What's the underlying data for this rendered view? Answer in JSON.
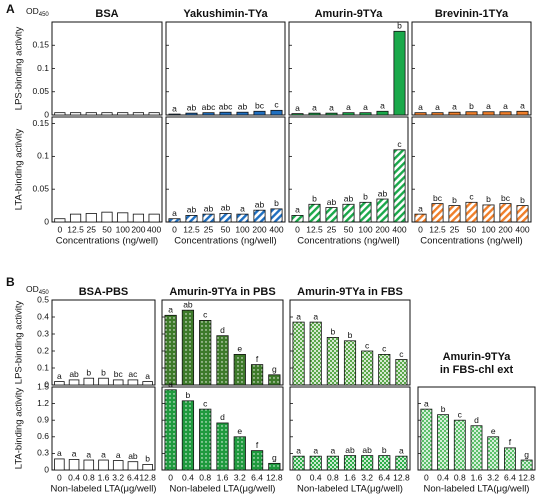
{
  "labels": {
    "a": "A",
    "b": "B"
  },
  "chart_data": [
    {
      "type": "bar",
      "title": "BSA",
      "title_color": "#111111",
      "ylabel": "LPS-binding activity",
      "od": "OD",
      "od_sub": "450",
      "color": "#ffffff",
      "pattern": "solid",
      "values": [
        0.005,
        0.005,
        0.005,
        0.005,
        0.005,
        0.005,
        0.005
      ],
      "ylim": [
        0,
        0.2
      ],
      "yticks": [
        0,
        0.05,
        0.1,
        0.15
      ]
    },
    {
      "type": "bar",
      "ylabel": "LTA-binding activity",
      "xlabel": "Concentrations (ng/well)",
      "color": "#ffffff",
      "pattern": "solid",
      "categories": [
        "0",
        "12.5",
        "25",
        "50",
        "100",
        "200",
        "400"
      ],
      "values": [
        0.005,
        0.012,
        0.013,
        0.015,
        0.014,
        0.012,
        0.012
      ],
      "ylim": [
        0,
        0.16
      ],
      "yticks": [
        0,
        0.05,
        0.1,
        0.15
      ]
    },
    {
      "type": "bar",
      "title": "Yakushimin-TYa",
      "title_color": "#1f6fc0",
      "color": "#1f6fc0",
      "pattern": "solid",
      "values": [
        0.002,
        0.004,
        0.005,
        0.006,
        0.006,
        0.008,
        0.01
      ],
      "annotations": [
        "a",
        "ab",
        "abc",
        "abc",
        "ab",
        "bc",
        "c"
      ],
      "ylim": [
        0,
        0.2
      ],
      "yticks": [
        0,
        0.05,
        0.1,
        0.15
      ]
    },
    {
      "type": "bar",
      "xlabel": "Concentrations (ng/well)",
      "color": "#1f6fc0",
      "pattern": "hatch",
      "categories": [
        "0",
        "12.5",
        "25",
        "50",
        "100",
        "200",
        "400"
      ],
      "values": [
        0.005,
        0.01,
        0.012,
        0.013,
        0.012,
        0.018,
        0.02
      ],
      "annotations": [
        "a",
        "ab",
        "ab",
        "ab",
        "a",
        "ab",
        "b"
      ],
      "ylim": [
        0,
        0.16
      ],
      "yticks": [
        0,
        0.05,
        0.1,
        0.15
      ]
    },
    {
      "type": "bar",
      "title": "Amurin-9TYa",
      "title_color": "#1aa84a",
      "color": "#1aa84a",
      "pattern": "solid",
      "values": [
        0.003,
        0.004,
        0.004,
        0.005,
        0.005,
        0.008,
        0.18
      ],
      "annotations": [
        "a",
        "a",
        "a",
        "a",
        "a",
        "a",
        "b"
      ],
      "ylim": [
        0,
        0.2
      ],
      "yticks": [
        0,
        0.05,
        0.1,
        0.15
      ]
    },
    {
      "type": "bar",
      "xlabel": "Concentrations (ng/well)",
      "color": "#1aa84a",
      "pattern": "hatch",
      "categories": [
        "0",
        "12.5",
        "25",
        "50",
        "100",
        "200",
        "400"
      ],
      "values": [
        0.01,
        0.027,
        0.022,
        0.027,
        0.03,
        0.035,
        0.11
      ],
      "annotations": [
        "a",
        "b",
        "ab",
        "ab",
        "b",
        "ab",
        "c"
      ],
      "ylim": [
        0,
        0.16
      ],
      "yticks": [
        0,
        0.05,
        0.1,
        0.15
      ]
    },
    {
      "type": "bar",
      "title": "Brevinin-1TYa",
      "title_color": "#f07f2a",
      "color": "#f07f2a",
      "pattern": "solid",
      "values": [
        0.005,
        0.005,
        0.006,
        0.007,
        0.007,
        0.007,
        0.008
      ],
      "annotations": [
        "a",
        "a",
        "a",
        "b",
        "a",
        "a",
        "a"
      ],
      "ylim": [
        0,
        0.2
      ],
      "yticks": [
        0,
        0.05,
        0.1,
        0.15
      ]
    },
    {
      "type": "bar",
      "xlabel": "Concentrations (ng/well)",
      "color": "#f07f2a",
      "pattern": "hatch",
      "categories": [
        "0",
        "12.5",
        "25",
        "50",
        "100",
        "200",
        "400"
      ],
      "values": [
        0.012,
        0.028,
        0.025,
        0.03,
        0.026,
        0.028,
        0.025
      ],
      "annotations": [
        "a",
        "bc",
        "b",
        "c",
        "b",
        "bc",
        "b"
      ],
      "ylim": [
        0,
        0.16
      ],
      "yticks": [
        0,
        0.05,
        0.1,
        0.15
      ]
    },
    {
      "type": "bar",
      "title": "BSA-PBS",
      "title_color": "#111111",
      "ylabel": "LPS-binding activity",
      "od": "OD",
      "od_sub": "450",
      "color": "#ffffff",
      "pattern": "solid",
      "values": [
        0.02,
        0.03,
        0.04,
        0.04,
        0.03,
        0.03,
        0.02
      ],
      "annotations": [
        "a",
        "ab",
        "b",
        "b",
        "bc",
        "ac",
        "a"
      ],
      "ylim": [
        0,
        0.5
      ],
      "yticks": [
        0,
        0.1,
        0.2,
        0.3,
        0.4,
        0.5
      ]
    },
    {
      "type": "bar",
      "ylabel": "LTA-binding activity",
      "xlabel": "Non-labeled LTA(μg/well)",
      "color": "#ffffff",
      "pattern": "solid",
      "categories": [
        "0",
        "0.4",
        "0.8",
        "1.6",
        "3.2",
        "6.4",
        "12.8"
      ],
      "values": [
        0.2,
        0.19,
        0.18,
        0.18,
        0.17,
        0.15,
        0.1
      ],
      "annotations": [
        "a",
        "a",
        "a",
        "a",
        "a",
        "ab",
        "b"
      ],
      "ylim": [
        0,
        1.5
      ],
      "yticks": [
        0,
        0.3,
        0.6,
        0.9,
        1.2,
        1.5
      ]
    },
    {
      "type": "bar",
      "title": "Amurin-9TYa in PBS",
      "title_color": "#1aa84a",
      "color": "#3d7a2a",
      "pattern": "dots",
      "values": [
        0.41,
        0.44,
        0.38,
        0.29,
        0.18,
        0.12,
        0.06
      ],
      "annotations": [
        "a",
        "ab",
        "c",
        "d",
        "e",
        "f",
        "g"
      ],
      "ylim": [
        0,
        0.5
      ],
      "yticks": [
        0,
        0.1,
        0.2,
        0.3,
        0.4,
        0.5
      ]
    },
    {
      "type": "bar",
      "xlabel": "Non-labeled LTA(μg/well)",
      "color": "#1f9a3e",
      "pattern": "dots",
      "categories": [
        "0",
        "0.4",
        "0.8",
        "1.6",
        "3.2",
        "6.4",
        "12.8"
      ],
      "values": [
        1.45,
        1.25,
        1.1,
        0.85,
        0.6,
        0.35,
        0.12
      ],
      "annotations": [
        "a",
        "b",
        "c",
        "d",
        "e",
        "f",
        "g"
      ],
      "ylim": [
        0,
        1.5
      ],
      "yticks": [
        0,
        0.3,
        0.6,
        0.9,
        1.2,
        1.5
      ]
    },
    {
      "type": "bar",
      "title": "Amurin-9TYa in FBS",
      "title_color": "#1aa84a",
      "color": "#5aa84a",
      "pattern": "checks",
      "values": [
        0.37,
        0.37,
        0.28,
        0.26,
        0.2,
        0.18,
        0.15
      ],
      "annotations": [
        "a",
        "a",
        "b",
        "b",
        "c",
        "c",
        "c"
      ],
      "ylim": [
        0,
        0.5
      ],
      "yticks": [
        0,
        0.1,
        0.2,
        0.3,
        0.4,
        0.5
      ]
    },
    {
      "type": "bar",
      "xlabel": "Non-labeled LTA(μg/well)",
      "color": "#2fae4a",
      "pattern": "checks",
      "categories": [
        "0",
        "0.4",
        "0.8",
        "1.6",
        "3.2",
        "6.4",
        "12.8"
      ],
      "values": [
        0.25,
        0.25,
        0.25,
        0.26,
        0.26,
        0.26,
        0.25
      ],
      "annotations": [
        "a",
        "a",
        "a",
        "ab",
        "ab",
        "b",
        "a"
      ],
      "ylim": [
        0,
        1.5
      ],
      "yticks": [
        0,
        0.3,
        0.6,
        0.9,
        1.2,
        1.5
      ]
    },
    {
      "type": "bar",
      "title": [
        "Amurin-9TYa",
        "in FBS-chl ext"
      ],
      "title_color": "#1aa84a",
      "xlabel": "Non-labeled LTA(μg/well)",
      "color": "#5cc06a",
      "pattern": "checks",
      "categories": [
        "0",
        "0.4",
        "0.8",
        "1.6",
        "3.2",
        "6.4",
        "12.8"
      ],
      "values": [
        1.1,
        1.0,
        0.9,
        0.8,
        0.6,
        0.4,
        0.18
      ],
      "annotations": [
        "a",
        "b",
        "c",
        "d",
        "e",
        "f",
        "g"
      ],
      "ylim": [
        0,
        1.5
      ],
      "yticks": [
        0,
        0.3,
        0.6,
        0.9,
        1.2,
        1.5
      ]
    }
  ]
}
